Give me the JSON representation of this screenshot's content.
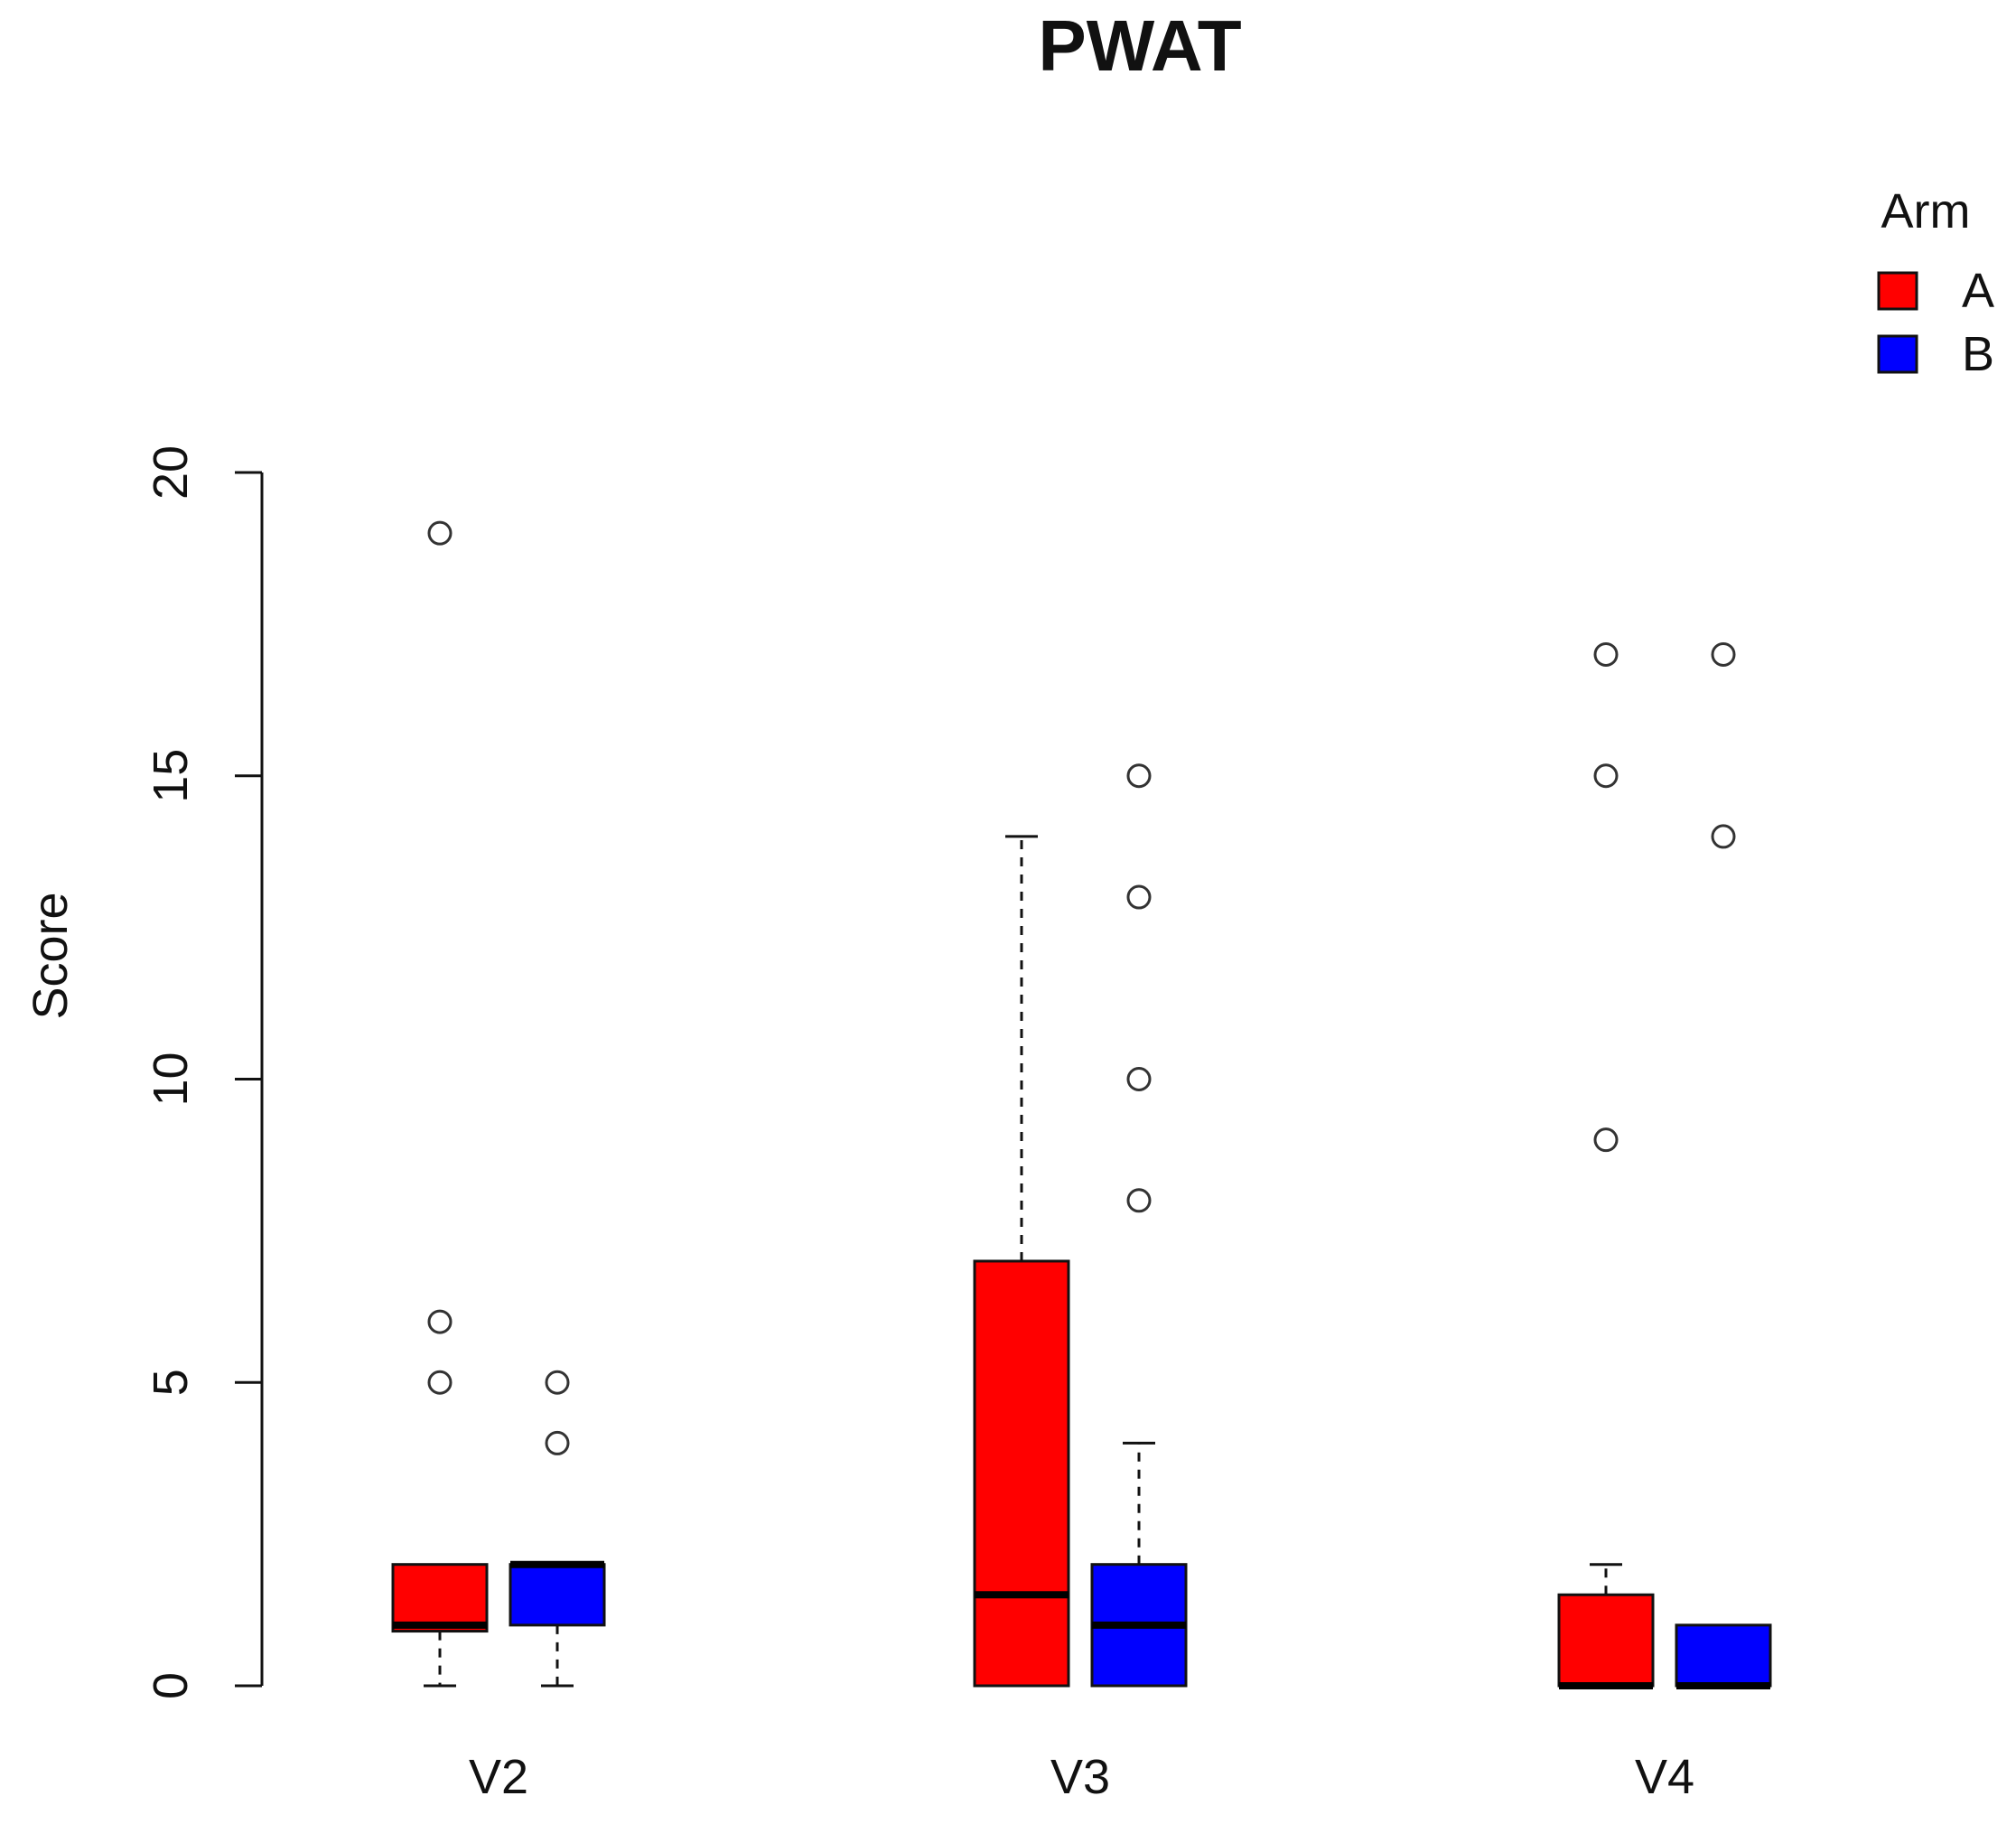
{
  "chart_data": {
    "type": "box",
    "title": "PWAT",
    "xlabel": "",
    "ylabel": "Score",
    "ylim": [
      0,
      20
    ],
    "yticks": [
      0,
      5,
      10,
      15,
      20
    ],
    "categories": [
      "V2",
      "V3",
      "V4"
    ],
    "legend": {
      "title": "Arm",
      "position": "top-right",
      "entries": [
        {
          "label": "A",
          "color": "#ff0000"
        },
        {
          "label": "B",
          "color": "#0000ff"
        }
      ]
    },
    "series": [
      {
        "name": "A",
        "color": "#ff0000",
        "boxes": [
          {
            "category": "V2",
            "whisker_low": 0,
            "q1": 0.9,
            "median": 1.0,
            "q3": 2.0,
            "whisker_high": 2.0,
            "outliers": [
              5,
              6,
              19
            ]
          },
          {
            "category": "V3",
            "whisker_low": 0,
            "q1": 0,
            "median": 1.5,
            "q3": 7.0,
            "whisker_high": 14.0,
            "outliers": []
          },
          {
            "category": "V4",
            "whisker_low": 0,
            "q1": 0,
            "median": 0,
            "q3": 1.5,
            "whisker_high": 2.0,
            "outliers": [
              9,
              15,
              17
            ]
          }
        ]
      },
      {
        "name": "B",
        "color": "#0000ff",
        "boxes": [
          {
            "category": "V2",
            "whisker_low": 0,
            "q1": 1.0,
            "median": 2.0,
            "q3": 2.0,
            "whisker_high": 2.0,
            "outliers": [
              4,
              5
            ]
          },
          {
            "category": "V3",
            "whisker_low": 0,
            "q1": 0,
            "median": 1.0,
            "q3": 2.0,
            "whisker_high": 4.0,
            "outliers": [
              8,
              10,
              13,
              15
            ]
          },
          {
            "category": "V4",
            "whisker_low": 0,
            "q1": 0,
            "median": 0,
            "q3": 1.0,
            "whisker_high": 1.0,
            "outliers": [
              14,
              17
            ]
          }
        ]
      }
    ]
  }
}
